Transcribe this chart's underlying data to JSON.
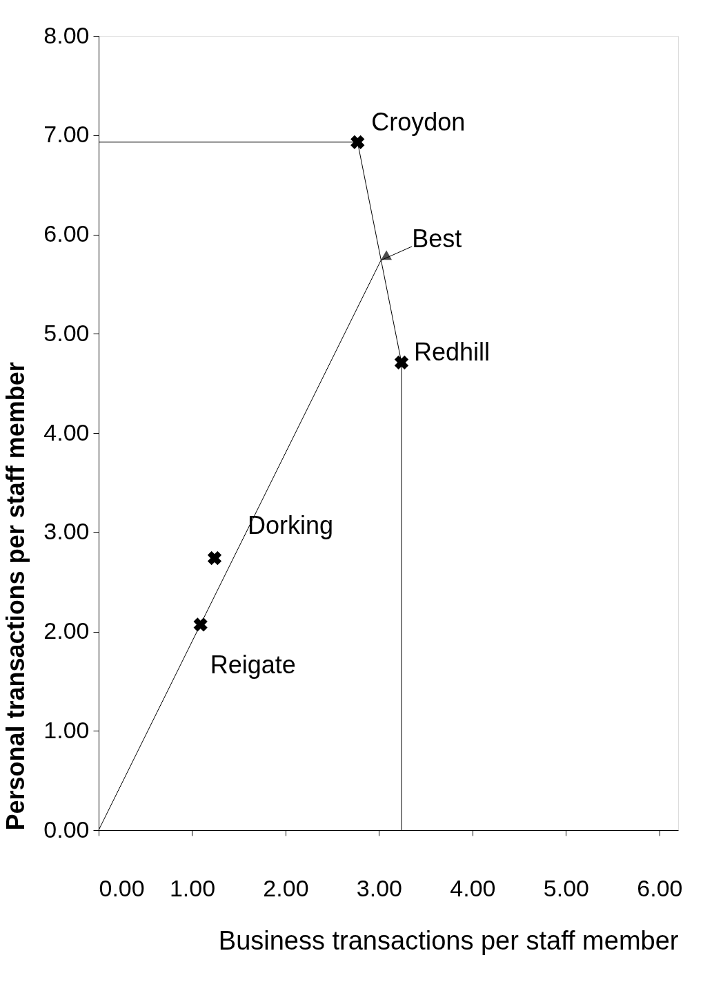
{
  "chart_data": {
    "type": "scatter",
    "xlabel": "Business transactions per staff member",
    "ylabel": "Personal transactions per staff member",
    "xlim": [
      0,
      6.2
    ],
    "ylim": [
      0,
      8
    ],
    "xticks": [
      {
        "value": 0,
        "label": "0.00"
      },
      {
        "value": 1,
        "label": "1.00"
      },
      {
        "value": 2,
        "label": "2.00"
      },
      {
        "value": 3,
        "label": "3.00"
      },
      {
        "value": 4,
        "label": "4.00"
      },
      {
        "value": 5,
        "label": "5.00"
      },
      {
        "value": 6,
        "label": "6.00"
      }
    ],
    "yticks": [
      {
        "value": 0,
        "label": "0.00"
      },
      {
        "value": 1,
        "label": "1.00"
      },
      {
        "value": 2,
        "label": "2.00"
      },
      {
        "value": 3,
        "label": "3.00"
      },
      {
        "value": 4,
        "label": "4.00"
      },
      {
        "value": 5,
        "label": "5.00"
      },
      {
        "value": 6,
        "label": "6.00"
      },
      {
        "value": 7,
        "label": "7.00"
      },
      {
        "value": 8,
        "label": "8.00"
      }
    ],
    "grid": false,
    "series": [
      {
        "type": "line",
        "color": "#000000",
        "x": [
          0,
          2.77,
          3.24,
          3.24
        ],
        "values": [
          6.93,
          6.93,
          4.71,
          0
        ],
        "marker": "none",
        "line_style": "solid"
      },
      {
        "type": "line",
        "color": "#000000",
        "x": [
          0,
          3.02
        ],
        "values": [
          0,
          5.74
        ],
        "marker": "none",
        "line_style": "solid"
      },
      {
        "color": "#000000",
        "x": [
          2.77,
          3.24,
          1.24,
          1.09
        ],
        "values": [
          6.93,
          4.71,
          2.74,
          2.07
        ],
        "marker": "cross"
      }
    ],
    "annotations": [
      {
        "text": "Croydon",
        "x": 2.77,
        "y": 6.93
      },
      {
        "text": "Redhill",
        "x": 3.24,
        "y": 4.71
      },
      {
        "text": "Dorking",
        "x": 1.24,
        "y": 2.74
      },
      {
        "text": "Reigate",
        "x": 1.09,
        "y": 2.07
      },
      {
        "text": "Best",
        "x": 3.02,
        "y": 5.74
      }
    ]
  }
}
